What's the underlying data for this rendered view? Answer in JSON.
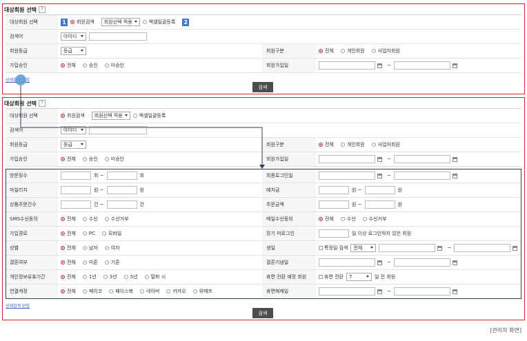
{
  "panels": [
    {
      "title": "대상회원 선택",
      "help": "?",
      "rows": [
        {
          "label": "대상회원 선택",
          "controls": [
            {
              "kind": "badge",
              "text": "1"
            },
            {
              "kind": "radio",
              "text": "회원검색",
              "checked": true
            },
            {
              "kind": "select",
              "text": "회원선택 적용"
            },
            {
              "kind": "radio",
              "text": "엑셀일괄등록"
            },
            {
              "kind": "badge",
              "text": "2"
            }
          ]
        },
        {
          "label": "검색어",
          "controls": [
            {
              "kind": "select",
              "text": "아이디"
            },
            {
              "kind": "long-input"
            }
          ]
        },
        {
          "label": "회원등급",
          "controls": [
            {
              "kind": "select",
              "text": "등급"
            }
          ],
          "right": {
            "label": "회원구분",
            "controls": [
              {
                "kind": "radio",
                "text": "전체",
                "checked": true
              },
              {
                "kind": "radio",
                "text": "개인회원"
              },
              {
                "kind": "radio",
                "text": "사업자회원"
              }
            ]
          }
        },
        {
          "label": "가입승인",
          "controls": [
            {
              "kind": "radio",
              "text": "전체",
              "checked": true
            },
            {
              "kind": "radio",
              "text": "승인"
            },
            {
              "kind": "radio",
              "text": "미승인"
            }
          ],
          "right": {
            "label": "회원가입일",
            "controls": [
              {
                "kind": "date"
              },
              {
                "kind": "text",
                "text": "~"
              },
              {
                "kind": "date"
              }
            ]
          }
        }
      ],
      "link": "상세검색 펼침",
      "button": "검색"
    },
    {
      "title": "대상회원 선택",
      "help": "?",
      "rows": [
        {
          "label": "대상회원 선택",
          "controls": [
            {
              "kind": "radio",
              "text": "회원검색",
              "checked": true
            },
            {
              "kind": "select",
              "text": "회원선택 적용"
            },
            {
              "kind": "radio",
              "text": "엑셀일괄등록"
            }
          ]
        },
        {
          "label": "검색어",
          "controls": [
            {
              "kind": "select",
              "text": "아이디"
            },
            {
              "kind": "long-input"
            }
          ]
        },
        {
          "label": "회원등급",
          "controls": [
            {
              "kind": "select",
              "text": "등급"
            }
          ],
          "right": {
            "label": "회원구분",
            "controls": [
              {
                "kind": "radio",
                "text": "전체",
                "checked": true
              },
              {
                "kind": "radio",
                "text": "개인회원"
              },
              {
                "kind": "radio",
                "text": "사업자회원"
              }
            ]
          }
        },
        {
          "label": "가입승인",
          "controls": [
            {
              "kind": "radio",
              "text": "전체",
              "checked": true
            },
            {
              "kind": "radio",
              "text": "승인"
            },
            {
              "kind": "radio",
              "text": "미승인"
            }
          ],
          "right": {
            "label": "회원가입일",
            "controls": [
              {
                "kind": "date"
              },
              {
                "kind": "text",
                "text": "~"
              },
              {
                "kind": "date"
              }
            ]
          }
        }
      ],
      "detail_rows": [
        {
          "label": "방문횟수",
          "controls": [
            {
              "kind": "input"
            },
            {
              "kind": "text",
              "text": "회 ~"
            },
            {
              "kind": "input"
            },
            {
              "kind": "text",
              "text": "회"
            }
          ],
          "right": {
            "label": "최종로그인일",
            "controls": [
              {
                "kind": "date"
              },
              {
                "kind": "text",
                "text": "~"
              },
              {
                "kind": "date"
              }
            ]
          }
        },
        {
          "label": "마일리지",
          "controls": [
            {
              "kind": "input"
            },
            {
              "kind": "text",
              "text": "원 ~"
            },
            {
              "kind": "input"
            },
            {
              "kind": "text",
              "text": "원"
            }
          ],
          "right": {
            "label": "예치금",
            "controls": [
              {
                "kind": "input"
              },
              {
                "kind": "text",
                "text": "원 ~"
              },
              {
                "kind": "input"
              },
              {
                "kind": "text",
                "text": "원"
              }
            ]
          }
        },
        {
          "label": "상품주문건수",
          "controls": [
            {
              "kind": "input"
            },
            {
              "kind": "text",
              "text": "건 ~"
            },
            {
              "kind": "input"
            },
            {
              "kind": "text",
              "text": "건"
            }
          ],
          "right": {
            "label": "주문금액",
            "controls": [
              {
                "kind": "input"
              },
              {
                "kind": "text",
                "text": "원 ~"
              },
              {
                "kind": "input"
              },
              {
                "kind": "text",
                "text": "원"
              }
            ]
          }
        },
        {
          "label": "SMS수신동의",
          "controls": [
            {
              "kind": "radio",
              "text": "전체",
              "checked": true
            },
            {
              "kind": "radio",
              "text": "수신"
            },
            {
              "kind": "radio",
              "text": "수신거부"
            }
          ],
          "right": {
            "label": "메일수신동의",
            "controls": [
              {
                "kind": "radio",
                "text": "전체",
                "checked": true
              },
              {
                "kind": "radio",
                "text": "수신"
              },
              {
                "kind": "radio",
                "text": "수신거부"
              }
            ]
          }
        },
        {
          "label": "가입경로",
          "controls": [
            {
              "kind": "radio",
              "text": "전체",
              "checked": true
            },
            {
              "kind": "radio",
              "text": "PC"
            },
            {
              "kind": "radio",
              "text": "모바일"
            }
          ],
          "right": {
            "label": "장기 미로그인",
            "controls": [
              {
                "kind": "input"
              },
              {
                "kind": "text",
                "text": "일 이상 로그인하지 않은 회원"
              }
            ]
          }
        },
        {
          "label": "성별",
          "controls": [
            {
              "kind": "radio",
              "text": "전체",
              "checked": true
            },
            {
              "kind": "radio",
              "text": "남자"
            },
            {
              "kind": "radio",
              "text": "여자"
            }
          ],
          "right": {
            "label": "생일",
            "controls": [
              {
                "kind": "checkbox",
                "text": "특정일 검색"
              },
              {
                "kind": "select",
                "text": "전체"
              },
              {
                "kind": "date"
              },
              {
                "kind": "text",
                "text": "~"
              },
              {
                "kind": "date"
              }
            ]
          }
        },
        {
          "label": "결혼여부",
          "controls": [
            {
              "kind": "radio",
              "text": "전체",
              "checked": true
            },
            {
              "kind": "radio",
              "text": "미혼"
            },
            {
              "kind": "radio",
              "text": "기혼"
            }
          ],
          "right": {
            "label": "결혼기념일",
            "controls": [
              {
                "kind": "date"
              },
              {
                "kind": "text",
                "text": "~"
              },
              {
                "kind": "date"
              }
            ]
          }
        },
        {
          "label": "개인정보유효기간",
          "controls": [
            {
              "kind": "radio",
              "text": "전체",
              "checked": true
            },
            {
              "kind": "radio",
              "text": "1년"
            },
            {
              "kind": "radio",
              "text": "3년"
            },
            {
              "kind": "radio",
              "text": "5년"
            },
            {
              "kind": "radio",
              "text": "탈퇴 시"
            }
          ],
          "right": {
            "label": "휴면 전환 예정 회원",
            "controls": [
              {
                "kind": "checkbox",
                "text": "휴면 전환"
              },
              {
                "kind": "select",
                "text": "7"
              },
              {
                "kind": "text",
                "text": "일 전 회원"
              }
            ]
          }
        },
        {
          "label": "연결계정",
          "controls": [
            {
              "kind": "radio",
              "text": "전체",
              "checked": true
            },
            {
              "kind": "radio",
              "text": "페이코"
            },
            {
              "kind": "radio",
              "text": "페이스북"
            },
            {
              "kind": "radio",
              "text": "네이버"
            },
            {
              "kind": "radio",
              "text": "카카오"
            },
            {
              "kind": "radio",
              "text": "위메프"
            }
          ],
          "right": {
            "label": "휴면해제일",
            "controls": [
              {
                "kind": "date"
              },
              {
                "kind": "text",
                "text": "~"
              },
              {
                "kind": "date"
              }
            ]
          }
        }
      ],
      "link": "상세검색 닫힘",
      "button": "검색"
    }
  ],
  "footer": "[관리자 화면]"
}
